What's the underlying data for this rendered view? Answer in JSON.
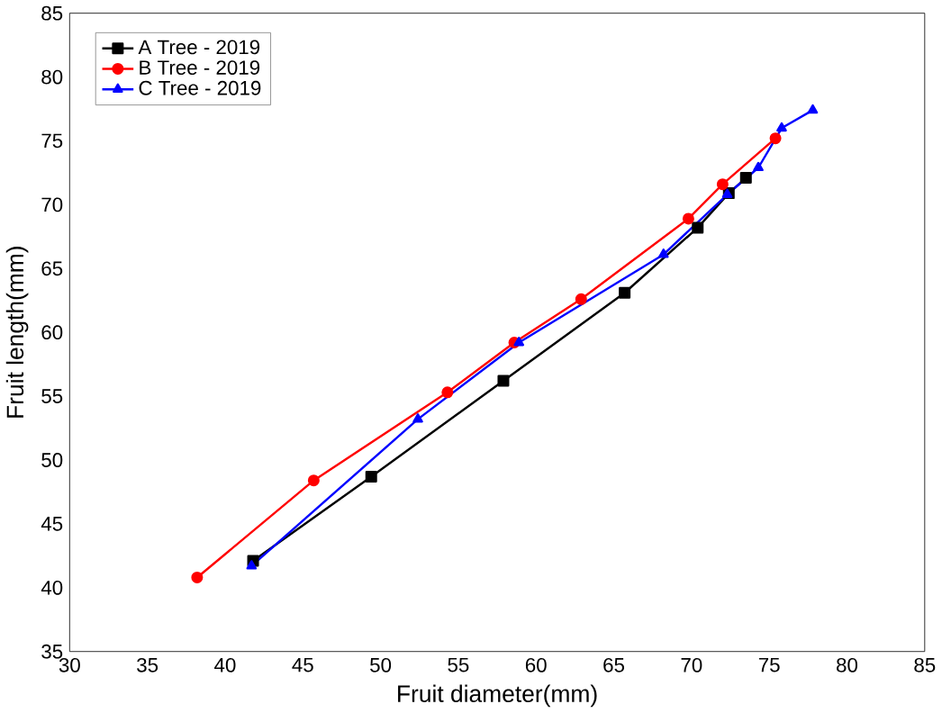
{
  "chart_data": {
    "type": "line",
    "xlabel": "Fruit diameter(mm)",
    "ylabel": "Fruit length(mm)",
    "xlim": [
      30,
      85
    ],
    "xticks": [
      30,
      35,
      40,
      45,
      50,
      55,
      60,
      65,
      70,
      75,
      80,
      85
    ],
    "ylim": [
      35,
      85
    ],
    "yticks": [
      35,
      40,
      45,
      50,
      55,
      60,
      65,
      70,
      75,
      80,
      85
    ],
    "legend": "top left",
    "grid": false,
    "series": [
      {
        "name": "A Tree - 2019",
        "color": "#000000",
        "marker": "square",
        "x": [
          41.8,
          49.4,
          57.9,
          65.7,
          70.4,
          72.4,
          73.5
        ],
        "values": [
          42.1,
          48.7,
          56.2,
          63.1,
          68.2,
          70.9,
          72.1
        ]
      },
      {
        "name": "B Tree - 2019",
        "color": "#ff0000",
        "marker": "circle",
        "x": [
          38.2,
          45.7,
          54.3,
          58.6,
          62.9,
          69.8,
          72.0,
          75.4
        ],
        "values": [
          40.8,
          48.4,
          55.3,
          59.2,
          62.6,
          68.9,
          71.6,
          75.2
        ]
      },
      {
        "name": "C Tree - 2019",
        "color": "#0000ff",
        "marker": "triangle",
        "x": [
          41.7,
          52.4,
          58.9,
          68.2,
          72.3,
          74.3,
          75.8,
          77.8
        ],
        "values": [
          41.7,
          53.2,
          59.2,
          66.1,
          70.8,
          72.9,
          76.0,
          77.4
        ]
      }
    ]
  }
}
